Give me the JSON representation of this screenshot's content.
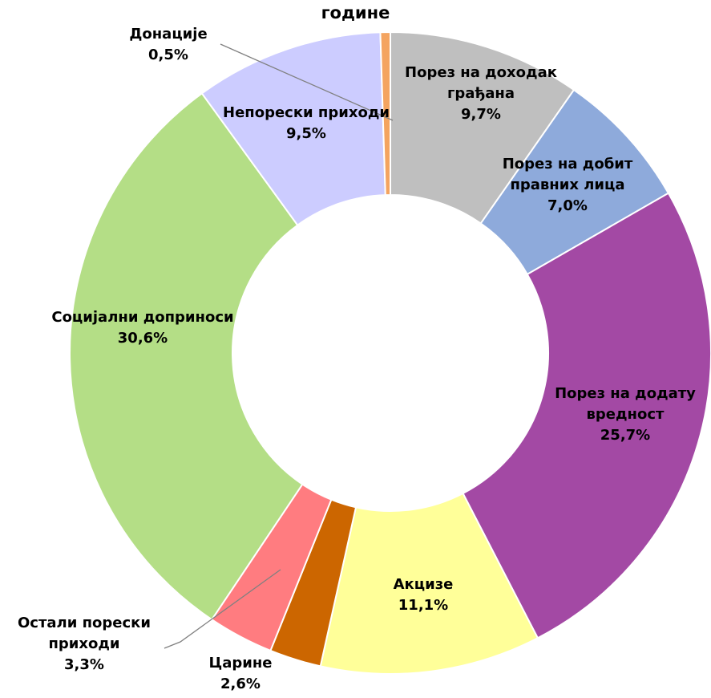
{
  "chart_data": {
    "type": "donut",
    "title": "године",
    "categories": [
      "Порез на доходак грађана",
      "Порез на добит правних лица",
      "Порез на додату вредност",
      "Акцизе",
      "Царине",
      "Остали порески приходи",
      "Социјални доприноси",
      "Непорески приходи",
      "Донације"
    ],
    "values": [
      9.7,
      7.0,
      25.7,
      11.1,
      2.6,
      3.3,
      30.6,
      9.5,
      0.5
    ],
    "value_labels": [
      "9,7%",
      "7,0%",
      "25,7%",
      "11,1%",
      "2,6%",
      "3,3%",
      "30,6%",
      "9,5%",
      "0,5%"
    ],
    "colors": [
      "#bfbfbf",
      "#8eaadb",
      "#a349a4",
      "#ffff99",
      "#cc6600",
      "#ff7c80",
      "#b4de86",
      "#ccccff",
      "#f4a460"
    ]
  }
}
